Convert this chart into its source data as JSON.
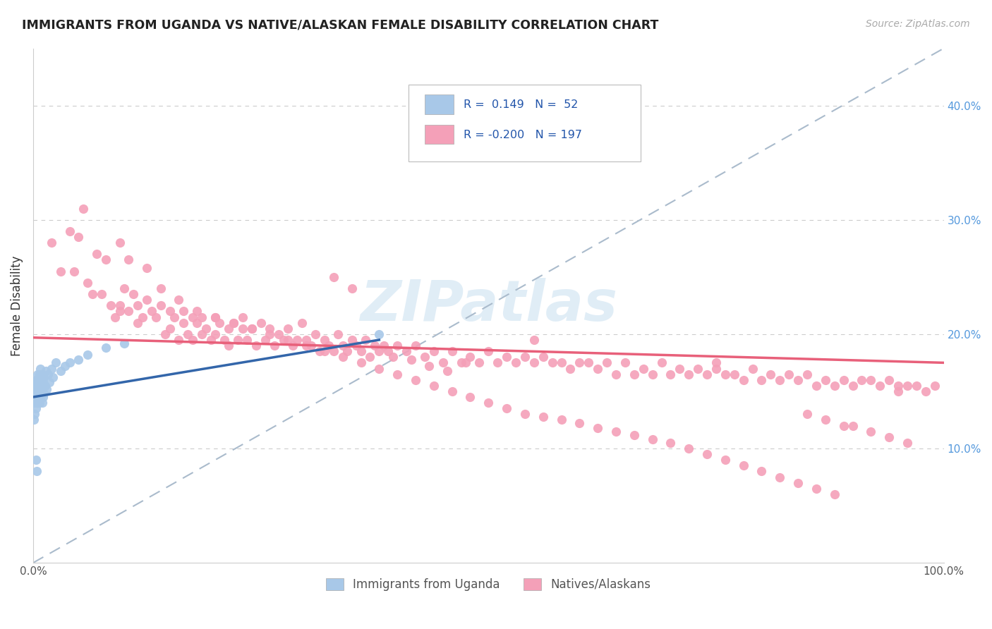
{
  "title": "IMMIGRANTS FROM UGANDA VS NATIVE/ALASKAN FEMALE DISABILITY CORRELATION CHART",
  "source": "Source: ZipAtlas.com",
  "ylabel": "Female Disability",
  "xlim": [
    0.0,
    1.0
  ],
  "ylim": [
    0.0,
    0.45
  ],
  "right_yticks": [
    0.1,
    0.2,
    0.3,
    0.4
  ],
  "right_yticklabels": [
    "10.0%",
    "20.0%",
    "30.0%",
    "40.0%"
  ],
  "blue_R": 0.149,
  "blue_N": 52,
  "pink_R": -0.2,
  "pink_N": 197,
  "blue_color": "#a8c8e8",
  "pink_color": "#f4a0b8",
  "blue_line_color": "#3366aa",
  "pink_line_color": "#e8607a",
  "dash_line_color": "#aabbcc",
  "legend_label_blue": "Immigrants from Uganda",
  "legend_label_pink": "Natives/Alaskans",
  "watermark": "ZIPatlas",
  "background_color": "#ffffff",
  "grid_color": "#cccccc",
  "blue_scatter_x": [
    0.001,
    0.001,
    0.002,
    0.002,
    0.002,
    0.003,
    0.003,
    0.003,
    0.003,
    0.004,
    0.004,
    0.004,
    0.005,
    0.005,
    0.005,
    0.005,
    0.006,
    0.006,
    0.006,
    0.007,
    0.007,
    0.007,
    0.008,
    0.008,
    0.008,
    0.009,
    0.009,
    0.01,
    0.01,
    0.01,
    0.011,
    0.011,
    0.012,
    0.012,
    0.013,
    0.014,
    0.015,
    0.016,
    0.018,
    0.02,
    0.022,
    0.025,
    0.03,
    0.035,
    0.04,
    0.05,
    0.06,
    0.08,
    0.1,
    0.003,
    0.004,
    0.38
  ],
  "blue_scatter_y": [
    0.145,
    0.125,
    0.155,
    0.13,
    0.14,
    0.16,
    0.145,
    0.135,
    0.15,
    0.155,
    0.14,
    0.16,
    0.15,
    0.165,
    0.14,
    0.155,
    0.145,
    0.16,
    0.155,
    0.15,
    0.165,
    0.14,
    0.155,
    0.17,
    0.145,
    0.16,
    0.155,
    0.15,
    0.165,
    0.14,
    0.158,
    0.145,
    0.162,
    0.148,
    0.155,
    0.168,
    0.152,
    0.165,
    0.158,
    0.17,
    0.162,
    0.175,
    0.168,
    0.172,
    0.175,
    0.178,
    0.182,
    0.188,
    0.192,
    0.09,
    0.08,
    0.2
  ],
  "pink_scatter_x": [
    0.02,
    0.03,
    0.055,
    0.065,
    0.08,
    0.09,
    0.095,
    0.1,
    0.105,
    0.11,
    0.115,
    0.115,
    0.12,
    0.125,
    0.13,
    0.135,
    0.14,
    0.145,
    0.15,
    0.15,
    0.155,
    0.16,
    0.165,
    0.165,
    0.17,
    0.175,
    0.175,
    0.18,
    0.185,
    0.185,
    0.19,
    0.195,
    0.2,
    0.2,
    0.205,
    0.21,
    0.215,
    0.215,
    0.22,
    0.225,
    0.23,
    0.23,
    0.235,
    0.24,
    0.245,
    0.25,
    0.255,
    0.26,
    0.265,
    0.27,
    0.275,
    0.28,
    0.285,
    0.29,
    0.295,
    0.3,
    0.305,
    0.31,
    0.315,
    0.32,
    0.325,
    0.33,
    0.335,
    0.34,
    0.345,
    0.35,
    0.355,
    0.36,
    0.365,
    0.37,
    0.375,
    0.38,
    0.385,
    0.39,
    0.395,
    0.4,
    0.41,
    0.42,
    0.43,
    0.44,
    0.45,
    0.46,
    0.47,
    0.48,
    0.49,
    0.5,
    0.51,
    0.52,
    0.53,
    0.54,
    0.55,
    0.56,
    0.57,
    0.58,
    0.59,
    0.6,
    0.61,
    0.62,
    0.63,
    0.64,
    0.65,
    0.66,
    0.67,
    0.68,
    0.69,
    0.7,
    0.71,
    0.72,
    0.73,
    0.74,
    0.75,
    0.76,
    0.77,
    0.78,
    0.79,
    0.8,
    0.81,
    0.82,
    0.83,
    0.84,
    0.85,
    0.86,
    0.87,
    0.88,
    0.89,
    0.9,
    0.91,
    0.92,
    0.93,
    0.94,
    0.95,
    0.96,
    0.97,
    0.98,
    0.99,
    0.045,
    0.06,
    0.075,
    0.085,
    0.095,
    0.14,
    0.16,
    0.18,
    0.2,
    0.22,
    0.24,
    0.26,
    0.28,
    0.3,
    0.32,
    0.34,
    0.36,
    0.38,
    0.4,
    0.42,
    0.44,
    0.46,
    0.48,
    0.5,
    0.52,
    0.54,
    0.56,
    0.58,
    0.6,
    0.62,
    0.64,
    0.66,
    0.68,
    0.7,
    0.72,
    0.74,
    0.76,
    0.78,
    0.8,
    0.82,
    0.84,
    0.86,
    0.88,
    0.9,
    0.92,
    0.94,
    0.96,
    0.04,
    0.05,
    0.07,
    0.415,
    0.435,
    0.455,
    0.475,
    0.85,
    0.87,
    0.89,
    0.095,
    0.33,
    0.35,
    0.55,
    0.75,
    0.95,
    0.105,
    0.125
  ],
  "pink_scatter_y": [
    0.28,
    0.255,
    0.31,
    0.235,
    0.265,
    0.215,
    0.225,
    0.24,
    0.22,
    0.235,
    0.21,
    0.225,
    0.215,
    0.23,
    0.22,
    0.215,
    0.225,
    0.2,
    0.22,
    0.205,
    0.215,
    0.195,
    0.21,
    0.22,
    0.2,
    0.215,
    0.195,
    0.21,
    0.2,
    0.215,
    0.205,
    0.195,
    0.215,
    0.2,
    0.21,
    0.195,
    0.205,
    0.19,
    0.21,
    0.195,
    0.205,
    0.215,
    0.195,
    0.205,
    0.19,
    0.21,
    0.195,
    0.205,
    0.19,
    0.2,
    0.195,
    0.205,
    0.19,
    0.195,
    0.21,
    0.195,
    0.19,
    0.2,
    0.185,
    0.195,
    0.19,
    0.185,
    0.2,
    0.19,
    0.185,
    0.195,
    0.19,
    0.185,
    0.195,
    0.18,
    0.19,
    0.185,
    0.19,
    0.185,
    0.18,
    0.19,
    0.185,
    0.19,
    0.18,
    0.185,
    0.175,
    0.185,
    0.175,
    0.18,
    0.175,
    0.185,
    0.175,
    0.18,
    0.175,
    0.18,
    0.175,
    0.18,
    0.175,
    0.175,
    0.17,
    0.175,
    0.175,
    0.17,
    0.175,
    0.165,
    0.175,
    0.165,
    0.17,
    0.165,
    0.175,
    0.165,
    0.17,
    0.165,
    0.17,
    0.165,
    0.17,
    0.165,
    0.165,
    0.16,
    0.17,
    0.16,
    0.165,
    0.16,
    0.165,
    0.16,
    0.165,
    0.155,
    0.16,
    0.155,
    0.16,
    0.155,
    0.16,
    0.16,
    0.155,
    0.16,
    0.155,
    0.155,
    0.155,
    0.15,
    0.155,
    0.255,
    0.245,
    0.235,
    0.225,
    0.22,
    0.24,
    0.23,
    0.22,
    0.215,
    0.21,
    0.205,
    0.2,
    0.195,
    0.19,
    0.185,
    0.18,
    0.175,
    0.17,
    0.165,
    0.16,
    0.155,
    0.15,
    0.145,
    0.14,
    0.135,
    0.13,
    0.128,
    0.125,
    0.122,
    0.118,
    0.115,
    0.112,
    0.108,
    0.105,
    0.1,
    0.095,
    0.09,
    0.085,
    0.08,
    0.075,
    0.07,
    0.065,
    0.06,
    0.12,
    0.115,
    0.11,
    0.105,
    0.29,
    0.285,
    0.27,
    0.178,
    0.172,
    0.168,
    0.175,
    0.13,
    0.125,
    0.12,
    0.28,
    0.25,
    0.24,
    0.195,
    0.175,
    0.15,
    0.265,
    0.258
  ]
}
